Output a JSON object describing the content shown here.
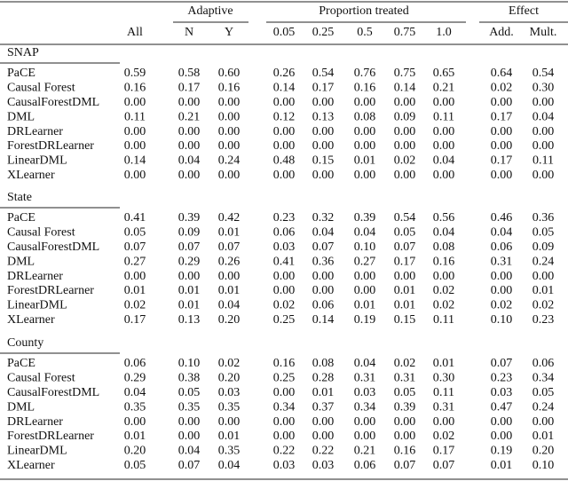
{
  "header": {
    "groups": [
      "Adaptive",
      "Proportion treated",
      "Effect"
    ],
    "columns": [
      "All",
      "N",
      "Y",
      "0.05",
      "0.25",
      "0.5",
      "0.75",
      "1.0",
      "Add.",
      "Mult."
    ]
  },
  "sections": [
    {
      "title": "SNAP",
      "rows": [
        {
          "label": "PaCE",
          "values": [
            "0.59",
            "0.58",
            "0.60",
            "0.26",
            "0.54",
            "0.76",
            "0.75",
            "0.65",
            "0.64",
            "0.54"
          ]
        },
        {
          "label": "Causal Forest",
          "values": [
            "0.16",
            "0.17",
            "0.16",
            "0.14",
            "0.17",
            "0.16",
            "0.14",
            "0.21",
            "0.02",
            "0.30"
          ]
        },
        {
          "label": "CausalForestDML",
          "values": [
            "0.00",
            "0.00",
            "0.00",
            "0.00",
            "0.00",
            "0.00",
            "0.00",
            "0.00",
            "0.00",
            "0.00"
          ]
        },
        {
          "label": "DML",
          "values": [
            "0.11",
            "0.21",
            "0.00",
            "0.12",
            "0.13",
            "0.08",
            "0.09",
            "0.11",
            "0.17",
            "0.04"
          ]
        },
        {
          "label": "DRLearner",
          "values": [
            "0.00",
            "0.00",
            "0.00",
            "0.00",
            "0.00",
            "0.00",
            "0.00",
            "0.00",
            "0.00",
            "0.00"
          ]
        },
        {
          "label": "ForestDRLearner",
          "values": [
            "0.00",
            "0.00",
            "0.00",
            "0.00",
            "0.00",
            "0.00",
            "0.00",
            "0.00",
            "0.00",
            "0.00"
          ]
        },
        {
          "label": "LinearDML",
          "values": [
            "0.14",
            "0.04",
            "0.24",
            "0.48",
            "0.15",
            "0.01",
            "0.02",
            "0.04",
            "0.17",
            "0.11"
          ]
        },
        {
          "label": "XLearner",
          "values": [
            "0.00",
            "0.00",
            "0.00",
            "0.00",
            "0.00",
            "0.00",
            "0.00",
            "0.00",
            "0.00",
            "0.00"
          ]
        }
      ]
    },
    {
      "title": "State",
      "rows": [
        {
          "label": "PaCE",
          "values": [
            "0.41",
            "0.39",
            "0.42",
            "0.23",
            "0.32",
            "0.39",
            "0.54",
            "0.56",
            "0.46",
            "0.36"
          ]
        },
        {
          "label": "Causal Forest",
          "values": [
            "0.05",
            "0.09",
            "0.01",
            "0.06",
            "0.04",
            "0.04",
            "0.05",
            "0.04",
            "0.04",
            "0.05"
          ]
        },
        {
          "label": "CausalForestDML",
          "values": [
            "0.07",
            "0.07",
            "0.07",
            "0.03",
            "0.07",
            "0.10",
            "0.07",
            "0.08",
            "0.06",
            "0.09"
          ]
        },
        {
          "label": "DML",
          "values": [
            "0.27",
            "0.29",
            "0.26",
            "0.41",
            "0.36",
            "0.27",
            "0.17",
            "0.16",
            "0.31",
            "0.24"
          ]
        },
        {
          "label": "DRLearner",
          "values": [
            "0.00",
            "0.00",
            "0.00",
            "0.00",
            "0.00",
            "0.00",
            "0.00",
            "0.00",
            "0.00",
            "0.00"
          ]
        },
        {
          "label": "ForestDRLearner",
          "values": [
            "0.01",
            "0.01",
            "0.01",
            "0.00",
            "0.00",
            "0.00",
            "0.01",
            "0.02",
            "0.00",
            "0.01"
          ]
        },
        {
          "label": "LinearDML",
          "values": [
            "0.02",
            "0.01",
            "0.04",
            "0.02",
            "0.06",
            "0.01",
            "0.01",
            "0.02",
            "0.02",
            "0.02"
          ]
        },
        {
          "label": "XLearner",
          "values": [
            "0.17",
            "0.13",
            "0.20",
            "0.25",
            "0.14",
            "0.19",
            "0.15",
            "0.11",
            "0.10",
            "0.23"
          ]
        }
      ]
    },
    {
      "title": "County",
      "rows": [
        {
          "label": "PaCE",
          "values": [
            "0.06",
            "0.10",
            "0.02",
            "0.16",
            "0.08",
            "0.04",
            "0.02",
            "0.01",
            "0.07",
            "0.06"
          ]
        },
        {
          "label": "Causal Forest",
          "values": [
            "0.29",
            "0.38",
            "0.20",
            "0.25",
            "0.28",
            "0.31",
            "0.31",
            "0.30",
            "0.23",
            "0.34"
          ]
        },
        {
          "label": "CausalForestDML",
          "values": [
            "0.04",
            "0.05",
            "0.03",
            "0.00",
            "0.01",
            "0.03",
            "0.05",
            "0.11",
            "0.03",
            "0.05"
          ]
        },
        {
          "label": "DML",
          "values": [
            "0.35",
            "0.35",
            "0.35",
            "0.34",
            "0.37",
            "0.34",
            "0.39",
            "0.31",
            "0.47",
            "0.24"
          ]
        },
        {
          "label": "DRLearner",
          "values": [
            "0.00",
            "0.00",
            "0.00",
            "0.00",
            "0.00",
            "0.00",
            "0.00",
            "0.00",
            "0.00",
            "0.00"
          ]
        },
        {
          "label": "ForestDRLearner",
          "values": [
            "0.01",
            "0.00",
            "0.01",
            "0.00",
            "0.00",
            "0.00",
            "0.00",
            "0.02",
            "0.00",
            "0.01"
          ]
        },
        {
          "label": "LinearDML",
          "values": [
            "0.20",
            "0.04",
            "0.35",
            "0.22",
            "0.22",
            "0.21",
            "0.16",
            "0.17",
            "0.19",
            "0.20"
          ]
        },
        {
          "label": "XLearner",
          "values": [
            "0.05",
            "0.07",
            "0.04",
            "0.03",
            "0.03",
            "0.06",
            "0.07",
            "0.07",
            "0.01",
            "0.10"
          ]
        }
      ]
    }
  ]
}
